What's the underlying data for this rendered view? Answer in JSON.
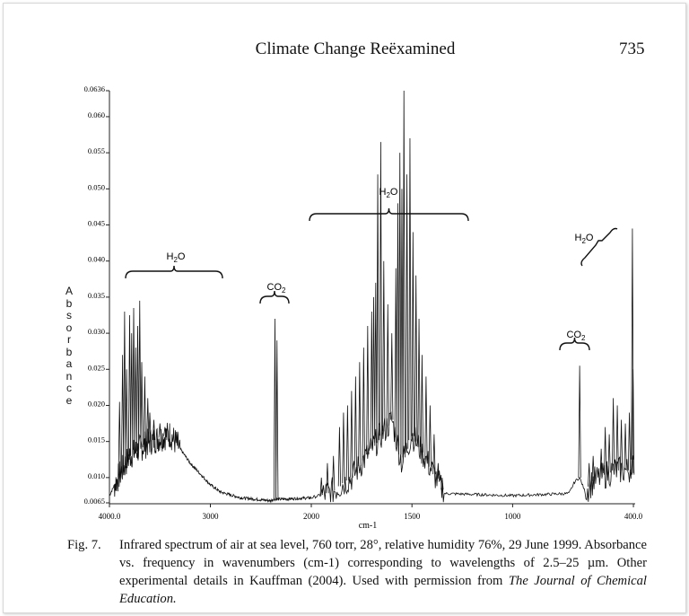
{
  "header": {
    "running_title": "Climate Change Reëxamined",
    "page_number": "735"
  },
  "caption": {
    "label": "Fig. 7.",
    "text": "Infrared spectrum of air at sea level, 760 torr, 28°, relative humidity 76%, 29 June 1999. Absorbance vs. frequency in wavenumbers (cm-1) corresponding to wavelengths of 2.5–25 µm. Other experimental details in Kauffman (2004). Used with permission from",
    "journal": "The Journal of Chemical Education."
  },
  "chart_data": {
    "type": "line",
    "title": "",
    "xlabel": "cm-1",
    "ylabel": "Absorbance",
    "xlim": [
      4000,
      400
    ],
    "ylim": [
      0.0065,
      0.0636
    ],
    "x_scale_note": "x axis compressed 4000-2000, expanded 2000-400",
    "x_ticks": [
      "4000.0",
      "3000",
      "2000",
      "1500",
      "1000",
      "400.0"
    ],
    "x_tick_values": [
      4000,
      3000,
      2000,
      1500,
      1000,
      400
    ],
    "y_ticks": [
      "0.0636",
      "0.060",
      "0.055",
      "0.050",
      "0.045",
      "0.040",
      "0.035",
      "0.030",
      "0.025",
      "0.020",
      "0.015",
      "0.010",
      "0.0065"
    ],
    "y_tick_values": [
      0.0636,
      0.06,
      0.055,
      0.05,
      0.045,
      0.04,
      0.035,
      0.03,
      0.025,
      0.02,
      0.015,
      0.01,
      0.0065
    ],
    "grid": false,
    "baseline": {
      "x": [
        4000,
        3950,
        3800,
        3600,
        3400,
        3300,
        3200,
        3000,
        2900,
        2700,
        2400,
        2380,
        2300,
        2000,
        1900,
        1800,
        1700,
        1600,
        1550,
        1500,
        1400,
        1340,
        1000,
        720,
        690,
        667,
        640,
        600,
        500,
        420,
        405,
        400
      ],
      "y": [
        0.0075,
        0.009,
        0.013,
        0.015,
        0.016,
        0.014,
        0.012,
        0.009,
        0.008,
        0.0072,
        0.0068,
        0.007,
        0.007,
        0.0072,
        0.008,
        0.01,
        0.014,
        0.018,
        0.012,
        0.016,
        0.011,
        0.0078,
        0.0075,
        0.0078,
        0.0095,
        0.01,
        0.008,
        0.0095,
        0.011,
        0.011,
        0.0125,
        0.009
      ]
    },
    "peaks": {
      "x": [
        3900,
        3870,
        3850,
        3830,
        3800,
        3780,
        3760,
        3740,
        3720,
        3700,
        3680,
        3650,
        3620,
        3600,
        3560,
        3500,
        3450,
        2360,
        2340,
        1950,
        1920,
        1890,
        1860,
        1840,
        1820,
        1800,
        1780,
        1760,
        1740,
        1720,
        1700,
        1690,
        1680,
        1670,
        1655,
        1640,
        1620,
        1600,
        1580,
        1570,
        1560,
        1550,
        1540,
        1525,
        1510,
        1495,
        1480,
        1465,
        1450,
        1430,
        1410,
        1390,
        1370,
        1350,
        667,
        620,
        600,
        560,
        540,
        520,
        500,
        480,
        460,
        440,
        420,
        405,
        402
      ],
      "y": [
        0.0205,
        0.027,
        0.033,
        0.025,
        0.0325,
        0.03,
        0.0335,
        0.028,
        0.031,
        0.0345,
        0.026,
        0.024,
        0.021,
        0.019,
        0.018,
        0.0175,
        0.017,
        0.032,
        0.029,
        0.01,
        0.012,
        0.013,
        0.017,
        0.019,
        0.02,
        0.022,
        0.024,
        0.026,
        0.028,
        0.031,
        0.033,
        0.035,
        0.037,
        0.052,
        0.0565,
        0.04,
        0.034,
        0.03,
        0.039,
        0.048,
        0.055,
        0.05,
        0.0636,
        0.052,
        0.057,
        0.044,
        0.038,
        0.032,
        0.027,
        0.024,
        0.02,
        0.016,
        0.012,
        0.01,
        0.0255,
        0.012,
        0.013,
        0.014,
        0.017,
        0.016,
        0.021,
        0.02,
        0.018,
        0.0175,
        0.019,
        0.0445,
        0.025
      ]
    },
    "annotations": [
      {
        "label": "H2O",
        "band": [
          3900,
          2900
        ]
      },
      {
        "label": "CO2",
        "band": [
          2400,
          2260
        ]
      },
      {
        "label": "H2O",
        "band": [
          2000,
          1220
        ]
      },
      {
        "label": "CO2",
        "band": [
          730,
          590
        ]
      },
      {
        "label": "H2O",
        "band": [
          640,
          400
        ]
      }
    ],
    "colors": {
      "trace": "#111111",
      "axis": "#222222"
    }
  }
}
